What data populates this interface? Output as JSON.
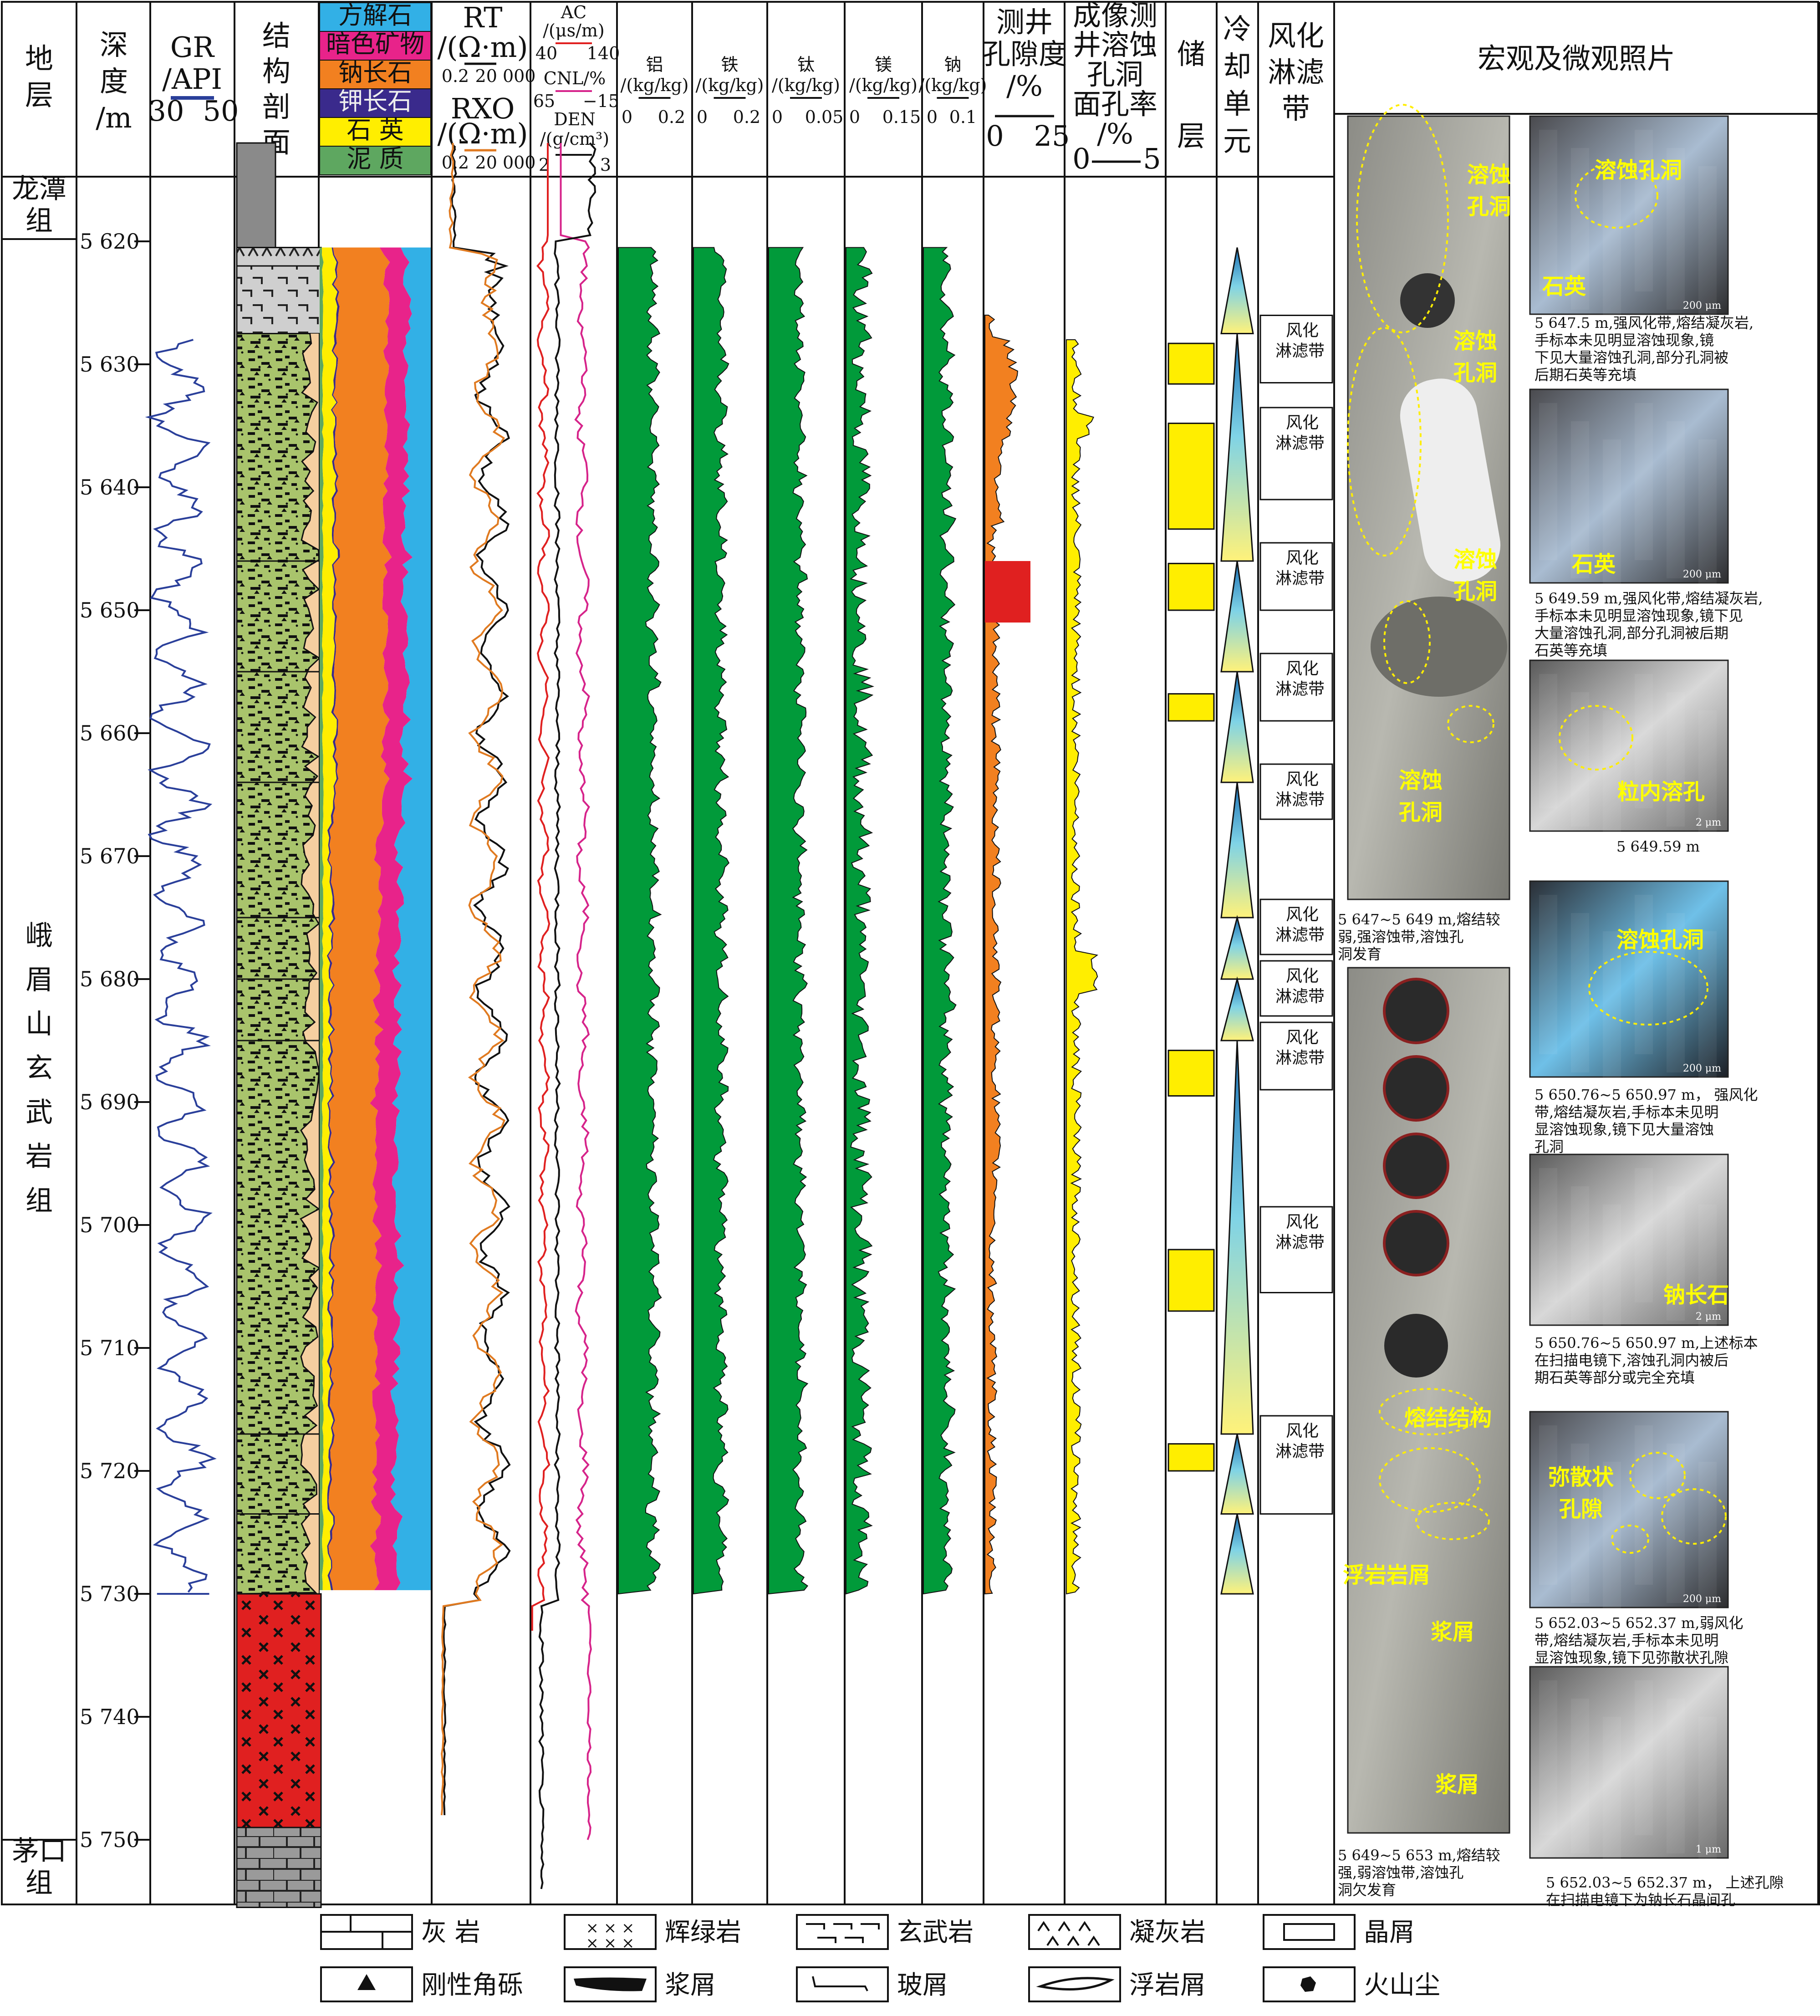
{
  "headers": {
    "strat": "地层",
    "depth": [
      "深度",
      "/m"
    ],
    "gr": [
      "GR",
      "/API",
      "30",
      "50"
    ],
    "section": [
      "结构",
      "剖面"
    ],
    "minerals": [
      "方解石",
      "暗色矿物",
      "钠长石",
      "钾长石",
      "石 英",
      "泥 质"
    ],
    "rt": [
      "RT",
      "/(Ω·m)",
      "0.2",
      "20 000"
    ],
    "rxo": [
      "RXO",
      "/(Ω·m)",
      "0.2",
      "20 000"
    ],
    "ac": [
      "AC",
      "/(μs/m)",
      "40",
      "140"
    ],
    "cnl": [
      "CNL/%",
      "65",
      "−15"
    ],
    "den": [
      "DEN",
      "/(g/cm³)",
      "2",
      "3"
    ],
    "al": [
      "铝",
      "/(kg/kg)",
      "0",
      "0.2"
    ],
    "fe": [
      "铁",
      "/(kg/kg)",
      "0",
      "0.2"
    ],
    "ti": [
      "钛",
      "/(kg/kg)",
      "0",
      "0.05"
    ],
    "mg": [
      "镁",
      "/(kg/kg)",
      "0",
      "0.15"
    ],
    "na": [
      "钠",
      "/(kg/kg)",
      "0",
      "0.1"
    ],
    "por": [
      "测井",
      "孔隙度",
      "/%",
      "0",
      "25"
    ],
    "img": [
      "成像测",
      "井溶蚀",
      "孔洞",
      "面孔率",
      "/%",
      "0",
      "5"
    ],
    "res": [
      "储",
      "层"
    ],
    "cool": [
      "冷",
      "却",
      "单",
      "元"
    ],
    "weath": [
      "风化",
      "淋滤",
      "带"
    ],
    "photo": "宏观及微观照片"
  },
  "strata": {
    "top": [
      "龙潭",
      "组"
    ],
    "mid": [
      "峨",
      "眉",
      "山",
      "玄",
      "武",
      "岩",
      "组"
    ],
    "bottom": [
      "茅口",
      "组"
    ]
  },
  "depth_ticks": [
    "5 620",
    "5 630",
    "5 640",
    "5 650",
    "5 660",
    "5 670",
    "5 680",
    "5 690",
    "5 700",
    "5 710",
    "5 720",
    "5 730",
    "5 740",
    "5 750"
  ],
  "chart_data": {
    "type": "well-log",
    "depth_range": [
      5611,
      5756
    ],
    "depth_ticks": [
      5620,
      5630,
      5640,
      5650,
      5660,
      5670,
      5680,
      5690,
      5700,
      5710,
      5720,
      5730,
      5740,
      5750
    ],
    "reservoir_intervals": [
      [
        5628.3,
        5631.6
      ],
      [
        5634.8,
        5643.4
      ],
      [
        5646.2,
        5650.0
      ],
      [
        5656.8,
        5659.0
      ],
      [
        5685.8,
        5689.5
      ],
      [
        5702.0,
        5707.0
      ],
      [
        5717.8,
        5720.0
      ]
    ],
    "cooling_units": [
      [
        5620.5,
        5627.5
      ],
      [
        5627.5,
        5646.0
      ],
      [
        5646.0,
        5655.0
      ],
      [
        5655.0,
        5664.0
      ],
      [
        5664.0,
        5675.0
      ],
      [
        5675.0,
        5680.0
      ],
      [
        5680.0,
        5685.0
      ],
      [
        5685.0,
        5717.0
      ],
      [
        5717.0,
        5723.5
      ],
      [
        5723.5,
        5730.0
      ]
    ]
  },
  "weathering_zones": [
    {
      "label": [
        "风化",
        "淋滤带"
      ]
    },
    {
      "label": [
        "风化",
        "淋滤带"
      ]
    },
    {
      "label": [
        "风化",
        "淋滤带"
      ]
    },
    {
      "label": [
        "风化",
        "淋滤带"
      ]
    },
    {
      "label": [
        "风化",
        "淋滤带"
      ]
    },
    {
      "label": [
        "风化",
        "淋滤带"
      ]
    },
    {
      "label": [
        "风化",
        "淋滤带"
      ]
    },
    {
      "label": [
        "风化",
        "淋滤带"
      ]
    },
    {
      "label": [
        "风化",
        "淋滤带"
      ]
    },
    {
      "label": [
        "风化",
        "淋滤带"
      ]
    }
  ],
  "photos": {
    "core1_labels": [
      "溶蚀",
      "孔洞",
      "溶蚀",
      "孔洞",
      "溶蚀",
      "孔洞",
      "溶蚀",
      "孔洞"
    ],
    "core1_caption": [
      "5 647~5 649 m,熔结较",
      "弱,强溶蚀带,溶蚀孔",
      "洞发育"
    ],
    "core2_labels": [
      "熔结结构",
      "浮岩岩屑",
      "浆屑",
      "浆屑"
    ],
    "core2_caption": [
      "5 649~5 653 m,熔结较",
      "强,弱溶蚀带,溶蚀孔",
      "洞欠发育"
    ],
    "micro1_labels": [
      "溶蚀孔洞",
      "石英"
    ],
    "micro1_caption": [
      "5 647.5 m,强风化带,熔结凝灰岩,",
      "手标本未见明显溶蚀现象,镜",
      "下见大量溶蚀孔洞,部分孔洞被",
      "后期石英等充填"
    ],
    "micro2_labels": [
      "石英"
    ],
    "micro2_caption": [
      "5 649.59 m,强风化带,熔结凝灰岩,",
      "手标本未见明显溶蚀现象,镜下见",
      "大量溶蚀孔洞,部分孔洞被后期",
      "石英等充填"
    ],
    "micro3_labels": [
      "粒内溶孔"
    ],
    "micro3_caption": [
      "5 649.59 m"
    ],
    "micro4_labels": [
      "溶蚀孔洞"
    ],
    "micro4_caption": [
      "5 650.76~5 650.97 m， 强风化",
      "带,熔结凝灰岩,手标本未见明",
      "显溶蚀现象,镜下见大量溶蚀",
      "孔洞"
    ],
    "micro5_labels": [
      "钠长石"
    ],
    "micro5_caption": [
      "5 650.76~5 650.97 m,上述标本",
      "在扫描电镜下,溶蚀孔洞内被后",
      "期石英等部分或完全充填"
    ],
    "micro6_labels": [
      "弥散状",
      "孔隙"
    ],
    "micro6_caption": [
      "5 652.03~5 652.37 m,弱风化",
      "带,熔结凝灰岩,手标本未见明",
      "显溶蚀现象,镜下见弥散状孔隙"
    ],
    "micro7_caption": [
      "5 652.03~5 652.37 m， 上述孔隙",
      "在扫描电镜下为钠长石晶间孔"
    ],
    "scale_200": "200 μm",
    "scale_2": "2 μm",
    "scale_1": "1 μm"
  },
  "legend": {
    "row1": [
      "灰 岩",
      "辉绿岩",
      "玄武岩",
      "凝灰岩",
      "晶屑"
    ],
    "row2": [
      "刚性角砾",
      "浆屑",
      "玻屑",
      "浮岩屑",
      "火山尘"
    ]
  }
}
